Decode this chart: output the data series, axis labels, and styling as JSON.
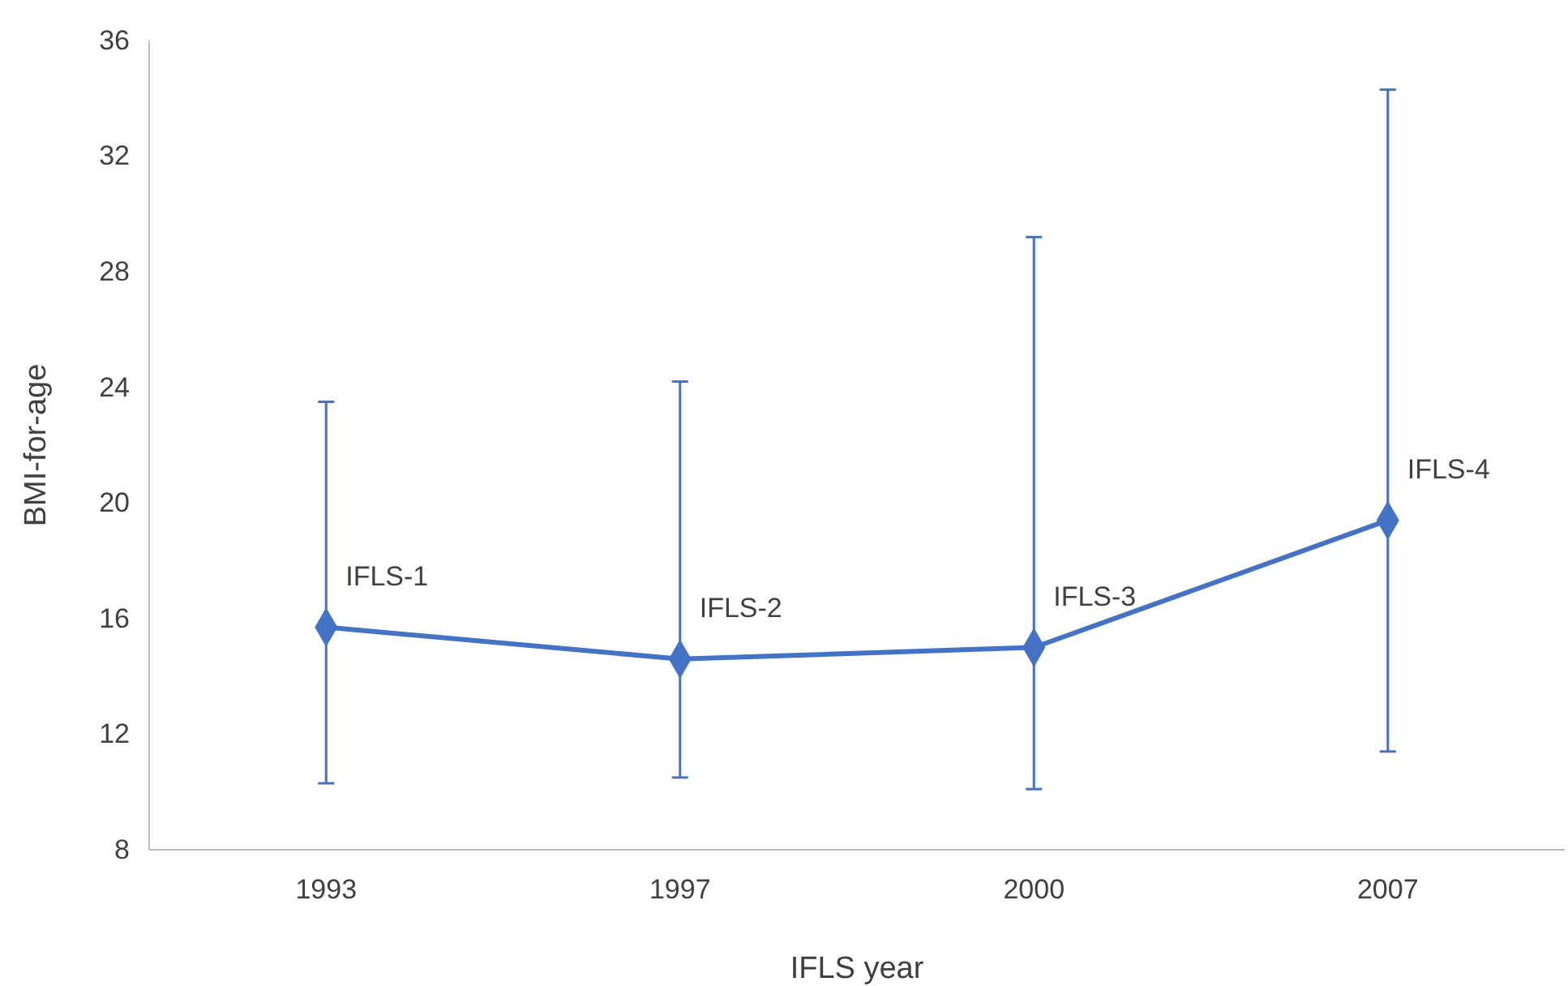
{
  "chart_data": {
    "type": "line",
    "xlabel": "IFLS year",
    "ylabel": "BMI-for-age",
    "categories": [
      "1993",
      "1997",
      "2000",
      "2007"
    ],
    "series": [
      {
        "color": "#4472c4",
        "values": [
          15.7,
          14.6,
          15.0,
          19.4
        ],
        "errors": [
          [
            10.3,
            23.5
          ],
          [
            10.5,
            24.2
          ],
          [
            10.1,
            29.2
          ],
          [
            11.4,
            34.3
          ]
        ]
      }
    ],
    "ylim": [
      8,
      36
    ],
    "yticks": [
      8,
      12,
      16,
      20,
      24,
      28,
      32,
      36
    ],
    "grid": false,
    "marker": "diamond",
    "line_style": "solid",
    "annotations": [
      {
        "text": "IFLS-1",
        "x": "1993",
        "y": 15.7
      },
      {
        "text": "IFLS-2",
        "x": "1997",
        "y": 14.6
      },
      {
        "text": "IFLS-3",
        "x": "2000",
        "y": 15.0
      },
      {
        "text": "IFLS-4",
        "x": "2007",
        "y": 19.4
      }
    ]
  }
}
